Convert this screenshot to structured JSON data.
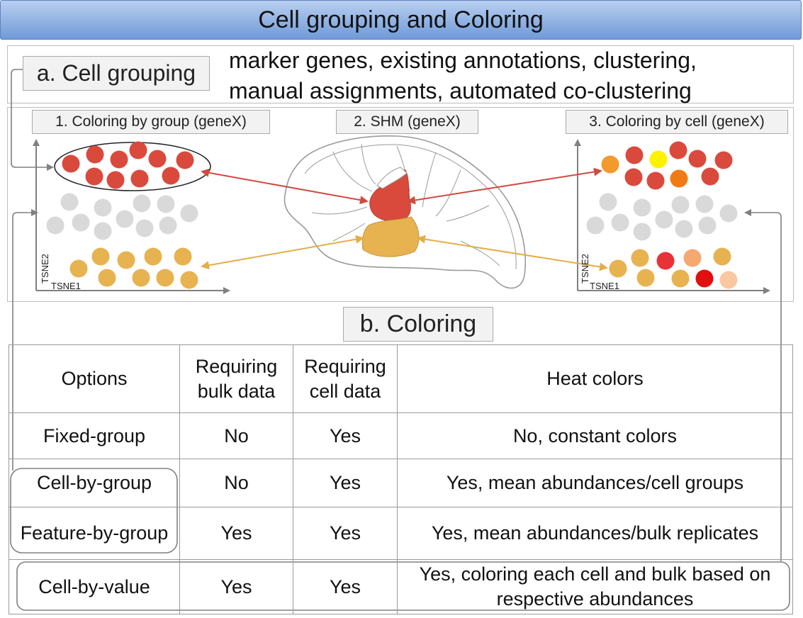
{
  "title": "Cell grouping and Coloring",
  "section_a": {
    "label": "a. Cell grouping",
    "description_lines": [
      "marker genes, existing annotations, clustering,",
      "manual assignments, automated co-clustering"
    ]
  },
  "panels": {
    "p1_label": "1. Coloring by group (geneX)",
    "p2_label": "2. SHM (geneX)",
    "p3_label": "3. Coloring by cell (geneX)",
    "x_axis": "TSNE1",
    "y_axis": "TSNE2"
  },
  "section_b": {
    "label": "b. Coloring"
  },
  "table": {
    "headers": [
      "Options",
      "Requiring bulk data",
      "Requiring cell data",
      "Heat colors"
    ],
    "rows": [
      [
        "Fixed-group",
        "No",
        "Yes",
        "No, constant colors"
      ],
      [
        "Cell-by-group",
        "No",
        "Yes",
        "Yes, mean abundances/cell groups"
      ],
      [
        "Feature-by-group",
        "Yes",
        "Yes",
        "Yes, mean abundances/bulk replicates"
      ],
      [
        "Cell-by-value",
        "Yes",
        "Yes",
        "Yes, coloring each cell and bulk based on respective abundances"
      ]
    ]
  },
  "colors": {
    "red_group": "#d94a3d",
    "grey_group": "#d9d9d9",
    "orange_group": "#e7b350",
    "connector": "#808080",
    "title_bar": "#8fb0e3"
  }
}
